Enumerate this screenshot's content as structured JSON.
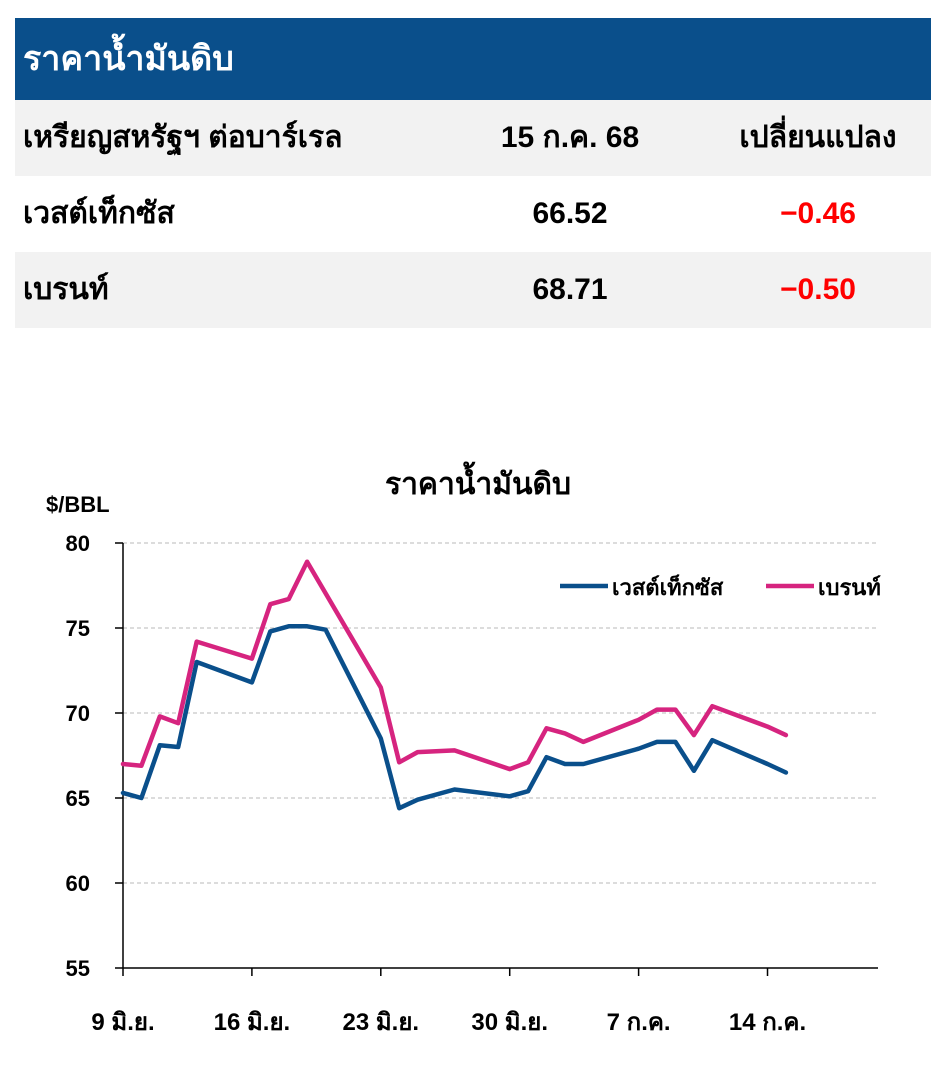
{
  "table": {
    "title": "ราคาน้ำมันดิบ",
    "header": {
      "unit": "เหรียญสหรัฐฯ ต่อบาร์เรล",
      "date": "15 ก.ค. 68",
      "change": "เปลี่ยนแปลง"
    },
    "rows": [
      {
        "name": "เวสต์เท็กซัส",
        "price": "66.52",
        "change": "−0.46"
      },
      {
        "name": "เบรนท์",
        "price": "68.71",
        "change": "−0.50"
      }
    ],
    "colors": {
      "header_bg": "#0a4f8b",
      "negative": "#ff0000",
      "row_shade": "#f2f2f2"
    }
  },
  "chart_data": {
    "type": "line",
    "title": "ราคาน้ำมันดิบ",
    "ylabel": "$/BBL",
    "xlabel": "",
    "ylim": [
      55,
      80
    ],
    "yticks": [
      55,
      60,
      65,
      70,
      75,
      80
    ],
    "grid": "horizontal dashed",
    "legend_position": "top-right",
    "x_range": [
      "2025-06-09",
      "2025-07-20"
    ],
    "x_ticks": [
      {
        "date": "2025-06-09",
        "label": "9 มิ.ย."
      },
      {
        "date": "2025-06-16",
        "label": "16 มิ.ย."
      },
      {
        "date": "2025-06-23",
        "label": "23 มิ.ย."
      },
      {
        "date": "2025-06-30",
        "label": "30 มิ.ย."
      },
      {
        "date": "2025-07-07",
        "label": "7 ก.ค."
      },
      {
        "date": "2025-07-14",
        "label": "14 ก.ค."
      }
    ],
    "series": [
      {
        "name": "เวสต์เท็กซัส",
        "color": "#0a4f8b",
        "points": [
          [
            "2025-06-09",
            65.3
          ],
          [
            "2025-06-10",
            65.0
          ],
          [
            "2025-06-11",
            68.1
          ],
          [
            "2025-06-12",
            68.0
          ],
          [
            "2025-06-13",
            73.0
          ],
          [
            "2025-06-16",
            71.8
          ],
          [
            "2025-06-17",
            74.8
          ],
          [
            "2025-06-18",
            75.1
          ],
          [
            "2025-06-19",
            75.1
          ],
          [
            "2025-06-20",
            74.9
          ],
          [
            "2025-06-23",
            68.5
          ],
          [
            "2025-06-24",
            64.4
          ],
          [
            "2025-06-25",
            64.9
          ],
          [
            "2025-06-27",
            65.5
          ],
          [
            "2025-06-30",
            65.1
          ],
          [
            "2025-07-01",
            65.4
          ],
          [
            "2025-07-02",
            67.4
          ],
          [
            "2025-07-03",
            67.0
          ],
          [
            "2025-07-04",
            67.0
          ],
          [
            "2025-07-07",
            67.9
          ],
          [
            "2025-07-08",
            68.3
          ],
          [
            "2025-07-09",
            68.3
          ],
          [
            "2025-07-10",
            66.6
          ],
          [
            "2025-07-11",
            68.4
          ],
          [
            "2025-07-14",
            67.0
          ],
          [
            "2025-07-15",
            66.5
          ]
        ]
      },
      {
        "name": "เบรนท์",
        "color": "#d6247f",
        "points": [
          [
            "2025-06-09",
            67.0
          ],
          [
            "2025-06-10",
            66.9
          ],
          [
            "2025-06-11",
            69.8
          ],
          [
            "2025-06-12",
            69.4
          ],
          [
            "2025-06-13",
            74.2
          ],
          [
            "2025-06-16",
            73.2
          ],
          [
            "2025-06-17",
            76.4
          ],
          [
            "2025-06-18",
            76.7
          ],
          [
            "2025-06-19",
            78.9
          ],
          [
            "2025-06-23",
            71.5
          ],
          [
            "2025-06-24",
            67.1
          ],
          [
            "2025-06-25",
            67.7
          ],
          [
            "2025-06-27",
            67.8
          ],
          [
            "2025-06-30",
            66.7
          ],
          [
            "2025-07-01",
            67.1
          ],
          [
            "2025-07-02",
            69.1
          ],
          [
            "2025-07-03",
            68.8
          ],
          [
            "2025-07-04",
            68.3
          ],
          [
            "2025-07-07",
            69.6
          ],
          [
            "2025-07-08",
            70.2
          ],
          [
            "2025-07-09",
            70.2
          ],
          [
            "2025-07-10",
            68.7
          ],
          [
            "2025-07-11",
            70.4
          ],
          [
            "2025-07-14",
            69.2
          ],
          [
            "2025-07-15",
            68.7
          ]
        ]
      }
    ]
  }
}
